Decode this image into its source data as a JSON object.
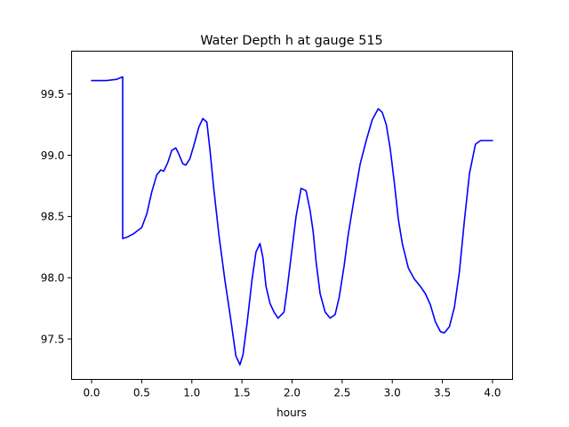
{
  "chart_data": {
    "type": "line",
    "title": "Water Depth h at gauge 515",
    "xlabel": "hours",
    "ylabel": "",
    "xlim": [
      -0.2,
      4.2
    ],
    "ylim": [
      97.17,
      99.85
    ],
    "xticks": [
      0.0,
      0.5,
      1.0,
      1.5,
      2.0,
      2.5,
      3.0,
      3.5,
      4.0
    ],
    "xtick_labels": [
      "0.0",
      "0.5",
      "1.0",
      "1.5",
      "2.0",
      "2.5",
      "3.0",
      "3.5",
      "4.0"
    ],
    "yticks": [
      97.5,
      98.0,
      98.5,
      99.0,
      99.5
    ],
    "ytick_labels": [
      "97.5",
      "98.0",
      "98.5",
      "99.0",
      "99.5"
    ],
    "grid": false,
    "series": [
      {
        "color": "#0000ff",
        "x": [
          0.0,
          0.15,
          0.25,
          0.31,
          0.31,
          0.35,
          0.42,
          0.5,
          0.55,
          0.6,
          0.65,
          0.69,
          0.72,
          0.76,
          0.8,
          0.84,
          0.87,
          0.91,
          0.94,
          0.98,
          1.02,
          1.07,
          1.11,
          1.15,
          1.18,
          1.22,
          1.27,
          1.33,
          1.39,
          1.44,
          1.48,
          1.51,
          1.55,
          1.6,
          1.64,
          1.68,
          1.71,
          1.74,
          1.78,
          1.82,
          1.86,
          1.92,
          1.95,
          1.99,
          2.04,
          2.09,
          2.14,
          2.18,
          2.21,
          2.24,
          2.28,
          2.33,
          2.38,
          2.43,
          2.47,
          2.52,
          2.56,
          2.62,
          2.68,
          2.74,
          2.8,
          2.86,
          2.9,
          2.94,
          2.98,
          3.02,
          3.06,
          3.1,
          3.16,
          3.22,
          3.28,
          3.33,
          3.38,
          3.43,
          3.48,
          3.52,
          3.57,
          3.62,
          3.67,
          3.72,
          3.77,
          3.83,
          3.88,
          3.93,
          3.98,
          4.0
        ],
        "y": [
          99.61,
          99.61,
          99.62,
          99.64,
          98.32,
          98.33,
          98.36,
          98.41,
          98.52,
          98.7,
          98.84,
          98.88,
          98.87,
          98.94,
          99.04,
          99.06,
          99.01,
          98.93,
          98.92,
          98.97,
          99.08,
          99.23,
          99.3,
          99.27,
          99.05,
          98.72,
          98.35,
          97.98,
          97.65,
          97.36,
          97.29,
          97.37,
          97.62,
          97.98,
          98.21,
          98.28,
          98.16,
          97.93,
          97.79,
          97.72,
          97.67,
          97.72,
          97.9,
          98.17,
          98.5,
          98.73,
          98.71,
          98.55,
          98.38,
          98.13,
          97.87,
          97.72,
          97.67,
          97.7,
          97.84,
          98.1,
          98.35,
          98.65,
          98.93,
          99.12,
          99.29,
          99.38,
          99.35,
          99.25,
          99.05,
          98.78,
          98.48,
          98.28,
          98.08,
          97.99,
          97.93,
          97.87,
          97.78,
          97.64,
          97.56,
          97.55,
          97.6,
          97.76,
          98.05,
          98.47,
          98.85,
          99.09,
          99.12,
          99.12,
          99.12,
          99.12
        ]
      }
    ]
  }
}
